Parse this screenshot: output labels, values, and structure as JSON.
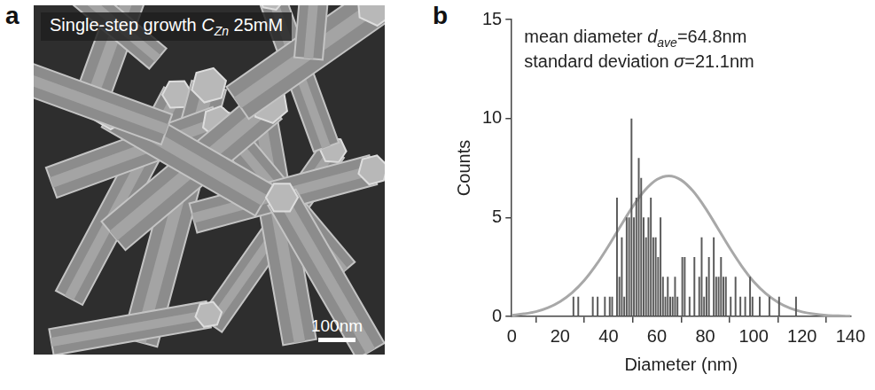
{
  "panels": [
    {
      "panel_label": "a",
      "image": {
        "caption": [
          {
            "text": "Single-step growth "
          },
          {
            "text": "C",
            "italic": true
          },
          {
            "text": "Zn",
            "italic": true,
            "sub": true
          },
          {
            "text": " 25mM"
          }
        ],
        "scale_bar": "100nm"
      }
    }
  ],
  "chart_data": {
    "panel_label": "b",
    "type": "histogram",
    "x_label": "Diameter (nm)",
    "y_label": "Counts",
    "annotations": [
      [
        {
          "text": "mean diameter "
        },
        {
          "text": "d",
          "italic": true
        },
        {
          "text": "ave",
          "italic": true,
          "sub": true
        },
        {
          "text": "=64.8nm"
        }
      ],
      [
        {
          "text": "standard deviation "
        },
        {
          "text": "σ",
          "italic": true
        },
        {
          "text": "=21.1nm"
        }
      ]
    ],
    "bins": [
      25,
      26,
      27,
      28,
      29,
      30,
      31,
      32,
      33,
      34,
      35,
      36,
      37,
      38,
      39,
      40,
      41,
      42,
      43,
      44,
      45,
      46,
      47,
      48,
      49,
      50,
      51,
      52,
      53,
      54,
      55,
      56,
      57,
      58,
      59,
      60,
      61,
      62,
      63,
      64,
      65,
      66,
      67,
      68,
      69,
      70,
      71,
      72,
      73,
      74,
      75,
      76,
      77,
      78,
      79,
      80,
      81,
      82,
      83,
      84,
      85,
      86,
      87,
      88,
      89,
      90,
      91,
      92,
      93,
      94,
      95,
      96,
      97,
      98,
      99,
      100,
      101,
      102,
      103,
      104,
      105,
      106,
      107,
      108,
      109,
      110,
      111,
      112,
      113,
      114,
      115,
      116,
      117,
      118
    ],
    "counts": [
      1,
      0,
      1,
      0,
      0,
      0,
      0,
      0,
      1,
      0,
      1,
      0,
      0,
      1,
      0,
      1,
      1,
      0,
      6,
      2,
      4,
      1,
      5,
      5,
      10,
      5,
      6,
      8,
      7,
      5,
      4,
      5,
      6,
      4,
      4,
      3,
      5,
      2,
      1,
      2,
      1,
      1,
      2,
      1,
      0,
      3,
      3,
      0,
      1,
      0,
      3,
      0,
      2,
      4,
      1,
      2,
      3,
      0,
      4,
      2,
      2,
      3,
      2,
      2,
      0,
      1,
      0,
      2,
      0,
      1,
      0,
      1,
      0,
      2,
      1,
      0,
      0,
      1,
      0,
      0,
      0,
      1,
      0,
      0,
      0,
      1,
      0,
      0,
      0,
      0,
      0,
      0,
      1
    ],
    "color": "#5a5a5a",
    "curve": {
      "type": "line",
      "color": "#a8a8a8",
      "x": [
        0,
        5,
        10,
        15,
        20,
        25,
        30,
        35,
        40,
        45,
        50,
        55,
        60,
        65,
        70,
        75,
        80,
        85,
        90,
        95,
        100,
        105,
        110,
        115,
        120,
        125,
        130,
        135,
        140
      ],
      "values": [
        0.06,
        0.13,
        0.24,
        0.44,
        0.75,
        1.2,
        1.82,
        2.62,
        3.56,
        4.57,
        5.55,
        6.37,
        6.92,
        7.1,
        6.89,
        6.32,
        5.48,
        4.49,
        3.48,
        2.55,
        1.76,
        1.16,
        0.72,
        0.42,
        0.23,
        0.12,
        0.06,
        0.03,
        0.01
      ]
    },
    "xlim": [
      0,
      140
    ],
    "xticks": [
      0,
      20,
      40,
      60,
      80,
      100,
      120,
      140
    ],
    "ylim": [
      0,
      15
    ],
    "yticks": [
      0,
      5,
      10,
      15
    ],
    "grid": false
  }
}
